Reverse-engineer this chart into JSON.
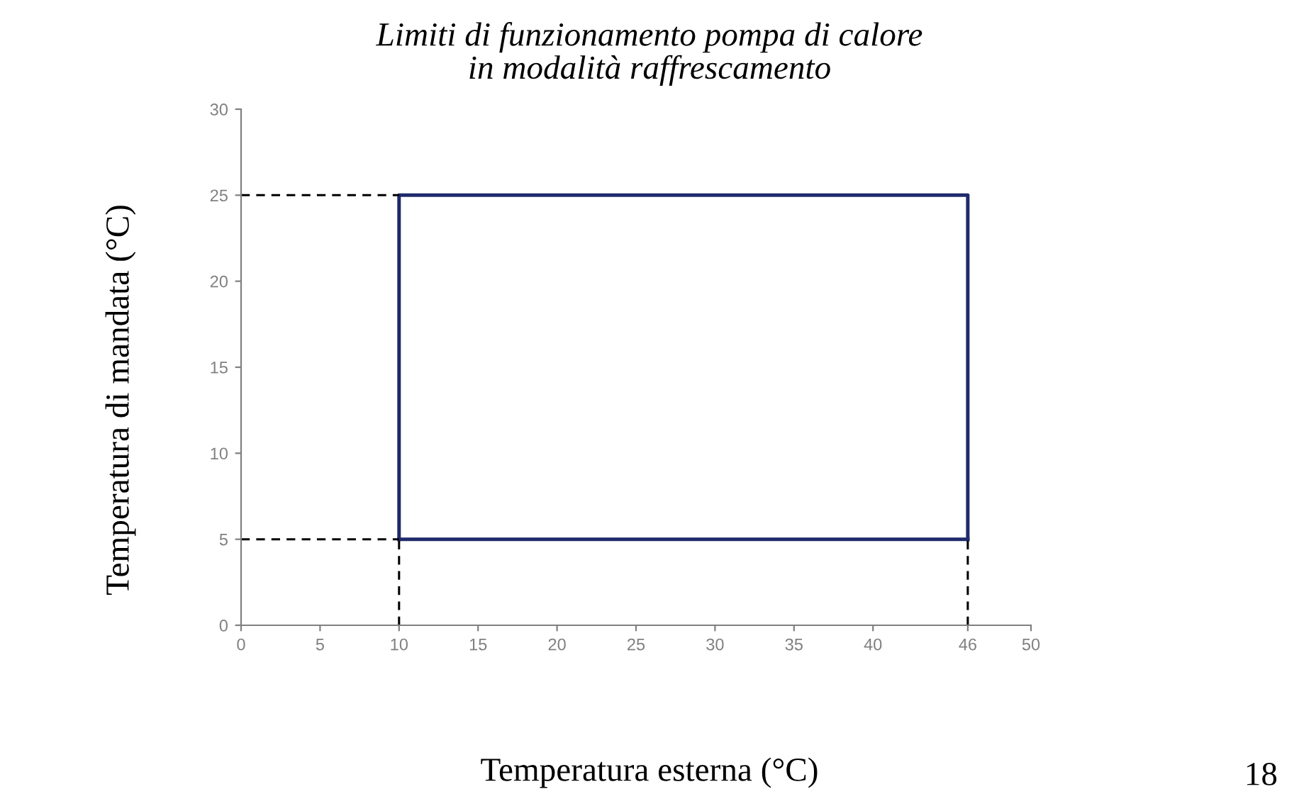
{
  "chart_data": {
    "type": "line",
    "title": "Limiti di funzionamento pompa di calore\nin modalità raffrescamento",
    "xlabel": "Temperatura esterna (°C)",
    "ylabel": "Temperatura di mandata (°C)",
    "annotations": [
      "18"
    ],
    "series": [
      {
        "color": "#1f2a6b",
        "line_style": "solid",
        "x": [
          10,
          10,
          46,
          46
        ],
        "values": [
          5,
          25,
          25,
          5
        ]
      },
      {
        "color": "#1f2a6b",
        "line_style": "solid",
        "x": [
          10,
          46
        ],
        "values": [
          5,
          5
        ]
      },
      {
        "color": "#000000",
        "line_style": "dashed",
        "x": [
          0,
          10
        ],
        "values": [
          25,
          25
        ]
      },
      {
        "color": "#000000",
        "line_style": "dashed",
        "x": [
          0,
          10
        ],
        "values": [
          5,
          5
        ]
      },
      {
        "color": "#000000",
        "line_style": "dashed",
        "x": [
          10,
          10
        ],
        "values": [
          0,
          5
        ]
      },
      {
        "color": "#000000",
        "line_style": "dashed",
        "x": [
          46,
          46
        ],
        "values": [
          0,
          5
        ]
      }
    ],
    "xlim": [
      0,
      50
    ],
    "xticks": [
      0,
      5,
      10,
      15,
      20,
      25,
      30,
      35,
      40,
      46,
      50
    ],
    "ylim": [
      0,
      30
    ],
    "yticks": [
      0,
      5,
      10,
      15,
      20,
      25,
      30
    ],
    "grid": false,
    "legend": false,
    "marker": "none"
  }
}
